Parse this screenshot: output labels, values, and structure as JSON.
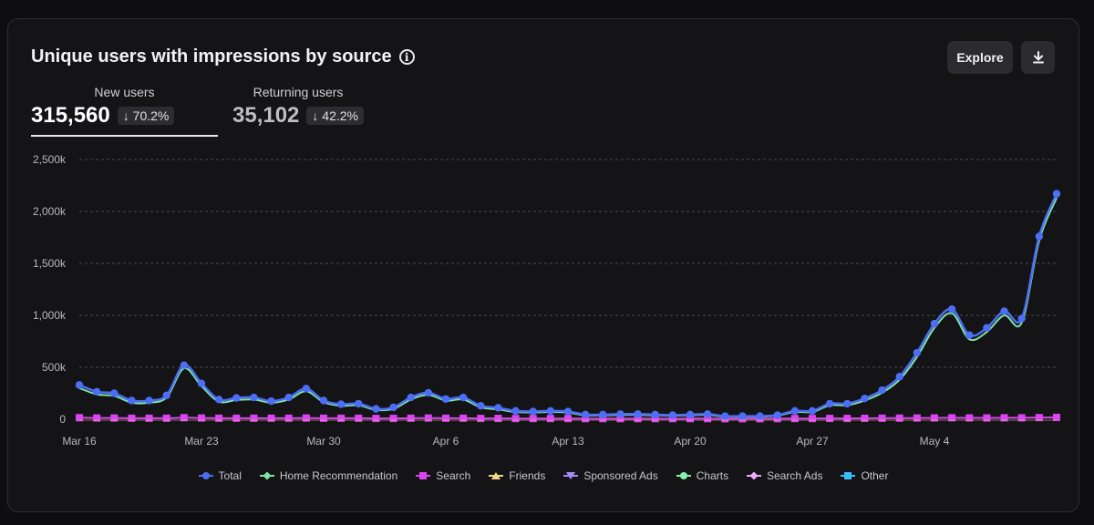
{
  "title": "Unique users with impressions by source",
  "buttons": {
    "explore": "Explore"
  },
  "metrics": {
    "new": {
      "label": "New users",
      "value": "315,560",
      "change": "70.2%"
    },
    "returning": {
      "label": "Returning users",
      "value": "35,102",
      "change": "42.2%"
    }
  },
  "colors": {
    "Total": "#4c6ef5",
    "Home Recommendation": "#7ee3a3",
    "Search": "#d946ef",
    "Friends": "#f5d48a",
    "Sponsored Ads": "#a78bfa",
    "Charts": "#86efac",
    "Search Ads": "#f0abfc",
    "Other": "#38bdf8"
  },
  "chart_data": {
    "type": "line",
    "x_start": "Mar 16",
    "x_tick_labels": [
      "Mar 16",
      "Mar 23",
      "Mar 30",
      "Apr 6",
      "Apr 13",
      "Apr 20",
      "Apr 27",
      "May 4"
    ],
    "y_tick_labels": [
      "0",
      "500k",
      "1,000k",
      "1,500k",
      "2,000k",
      "2,500k"
    ],
    "ylim": [
      0,
      2500000
    ],
    "grid": true,
    "legend_position": "bottom",
    "series": [
      {
        "name": "Total",
        "marker": "circle",
        "values": [
          330000,
          265000,
          250000,
          180000,
          180000,
          230000,
          520000,
          345000,
          190000,
          205000,
          210000,
          175000,
          210000,
          295000,
          180000,
          145000,
          150000,
          100000,
          115000,
          210000,
          255000,
          195000,
          210000,
          130000,
          110000,
          80000,
          75000,
          80000,
          75000,
          45000,
          45000,
          50000,
          50000,
          45000,
          40000,
          45000,
          50000,
          30000,
          30000,
          30000,
          40000,
          80000,
          80000,
          150000,
          150000,
          200000,
          280000,
          410000,
          640000,
          920000,
          1060000,
          810000,
          880000,
          1040000,
          970000,
          1760000,
          2170000
        ]
      },
      {
        "name": "Home Recommendation",
        "marker": "diamond",
        "values": [
          300000,
          240000,
          225000,
          160000,
          160000,
          210000,
          490000,
          320000,
          170000,
          185000,
          190000,
          160000,
          190000,
          270000,
          165000,
          130000,
          135000,
          90000,
          100000,
          190000,
          235000,
          180000,
          190000,
          115000,
          95000,
          70000,
          65000,
          70000,
          65000,
          38000,
          38000,
          42000,
          42000,
          38000,
          35000,
          38000,
          42000,
          25000,
          25000,
          25000,
          35000,
          70000,
          70000,
          135000,
          135000,
          180000,
          255000,
          380000,
          600000,
          880000,
          1020000,
          770000,
          840000,
          1000000,
          930000,
          1720000,
          2130000
        ]
      },
      {
        "name": "Search",
        "marker": "square",
        "values": [
          15000,
          12000,
          12000,
          10000,
          10000,
          10000,
          15000,
          12000,
          10000,
          10000,
          10000,
          10000,
          10000,
          12000,
          10000,
          10000,
          10000,
          8000,
          8000,
          10000,
          12000,
          10000,
          10000,
          8000,
          8000,
          7000,
          7000,
          7000,
          7000,
          6000,
          6000,
          6000,
          6000,
          6000,
          6000,
          6000,
          6000,
          5000,
          5000,
          5000,
          6000,
          7000,
          7000,
          8000,
          8000,
          9000,
          10000,
          11000,
          12000,
          13000,
          14000,
          13000,
          13000,
          14000,
          14000,
          16000,
          18000
        ]
      },
      {
        "name": "Friends",
        "values": []
      },
      {
        "name": "Sponsored Ads",
        "values": []
      },
      {
        "name": "Charts",
        "values": []
      },
      {
        "name": "Search Ads",
        "values": []
      },
      {
        "name": "Other",
        "values": []
      }
    ]
  }
}
